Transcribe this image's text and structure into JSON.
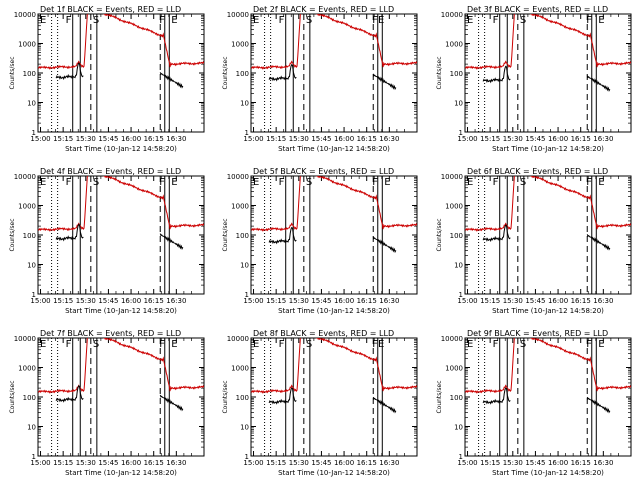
{
  "figure": {
    "ylabel": "Counts/sec",
    "xlabel": "Start Time (10-Jan-12 14:58:20)",
    "yticks": [
      "1",
      "10",
      "100",
      "1000",
      "10000"
    ],
    "xticks": [
      "15:00",
      "15:15",
      "15:30",
      "15:45",
      "16:00",
      "16:15",
      "16:30"
    ],
    "colors": {
      "events": "#000000",
      "lld": "#cc0000",
      "axis": "#000000",
      "background": "#ffffff"
    }
  },
  "chart_data": [
    {
      "type": "line",
      "title": "Det 1f BLACK = Events, RED = LLD",
      "markers": [
        "E",
        "F",
        "S",
        "F",
        "E"
      ],
      "xlim": [
        0,
        110
      ],
      "ylim": [
        1,
        10000
      ],
      "yscale": "log",
      "events_scale": 0.9
    },
    {
      "type": "line",
      "title": "Det 2f BLACK = Events, RED = LLD",
      "markers": [
        "E",
        "F",
        "S",
        "FE"
      ],
      "xlim": [
        0,
        110
      ],
      "ylim": [
        1,
        10000
      ],
      "yscale": "log",
      "events_scale": 0.8
    },
    {
      "type": "line",
      "title": "Det 3f BLACK = Events, RED = LLD",
      "markers": [
        "E",
        "F",
        "S",
        "F",
        "E"
      ],
      "xlim": [
        0,
        110
      ],
      "ylim": [
        1,
        10000
      ],
      "yscale": "log",
      "events_scale": 0.7
    },
    {
      "type": "line",
      "title": "Det 4f BLACK = Events, RED = LLD",
      "markers": [
        "E",
        "F",
        "S",
        "F",
        "E"
      ],
      "xlim": [
        0,
        110
      ],
      "ylim": [
        1,
        10000
      ],
      "yscale": "log",
      "events_scale": 0.95
    },
    {
      "type": "line",
      "title": "Det 5f BLACK = Events, RED = LLD",
      "markers": [
        "E",
        "F",
        "S",
        "F",
        "E"
      ],
      "xlim": [
        0,
        110
      ],
      "ylim": [
        1,
        10000
      ],
      "yscale": "log",
      "events_scale": 0.75
    },
    {
      "type": "line",
      "title": "Det 6f BLACK = Events, RED = LLD",
      "markers": [
        "E",
        "F",
        "S",
        "F",
        "E"
      ],
      "xlim": [
        0,
        110
      ],
      "ylim": [
        1,
        10000
      ],
      "yscale": "log",
      "events_scale": 0.9
    },
    {
      "type": "line",
      "title": "Det 7f BLACK = Events, RED = LLD",
      "markers": [
        "E",
        "F",
        "S",
        "F",
        "E"
      ],
      "xlim": [
        0,
        110
      ],
      "ylim": [
        1,
        10000
      ],
      "yscale": "log",
      "events_scale": 1.0
    },
    {
      "type": "line",
      "title": "Det 8f BLACK = Events, RED = LLD",
      "markers": [
        "E",
        "F",
        "S",
        "FE"
      ],
      "xlim": [
        0,
        110
      ],
      "ylim": [
        1,
        10000
      ],
      "yscale": "log",
      "events_scale": 0.85
    },
    {
      "type": "line",
      "title": "Det 9f BLACK = Events, RED = LLD",
      "markers": [
        "E",
        "F",
        "S",
        "F",
        "E"
      ],
      "xlim": [
        0,
        110
      ],
      "ylim": [
        1,
        10000
      ],
      "yscale": "log",
      "events_scale": 0.85
    }
  ]
}
